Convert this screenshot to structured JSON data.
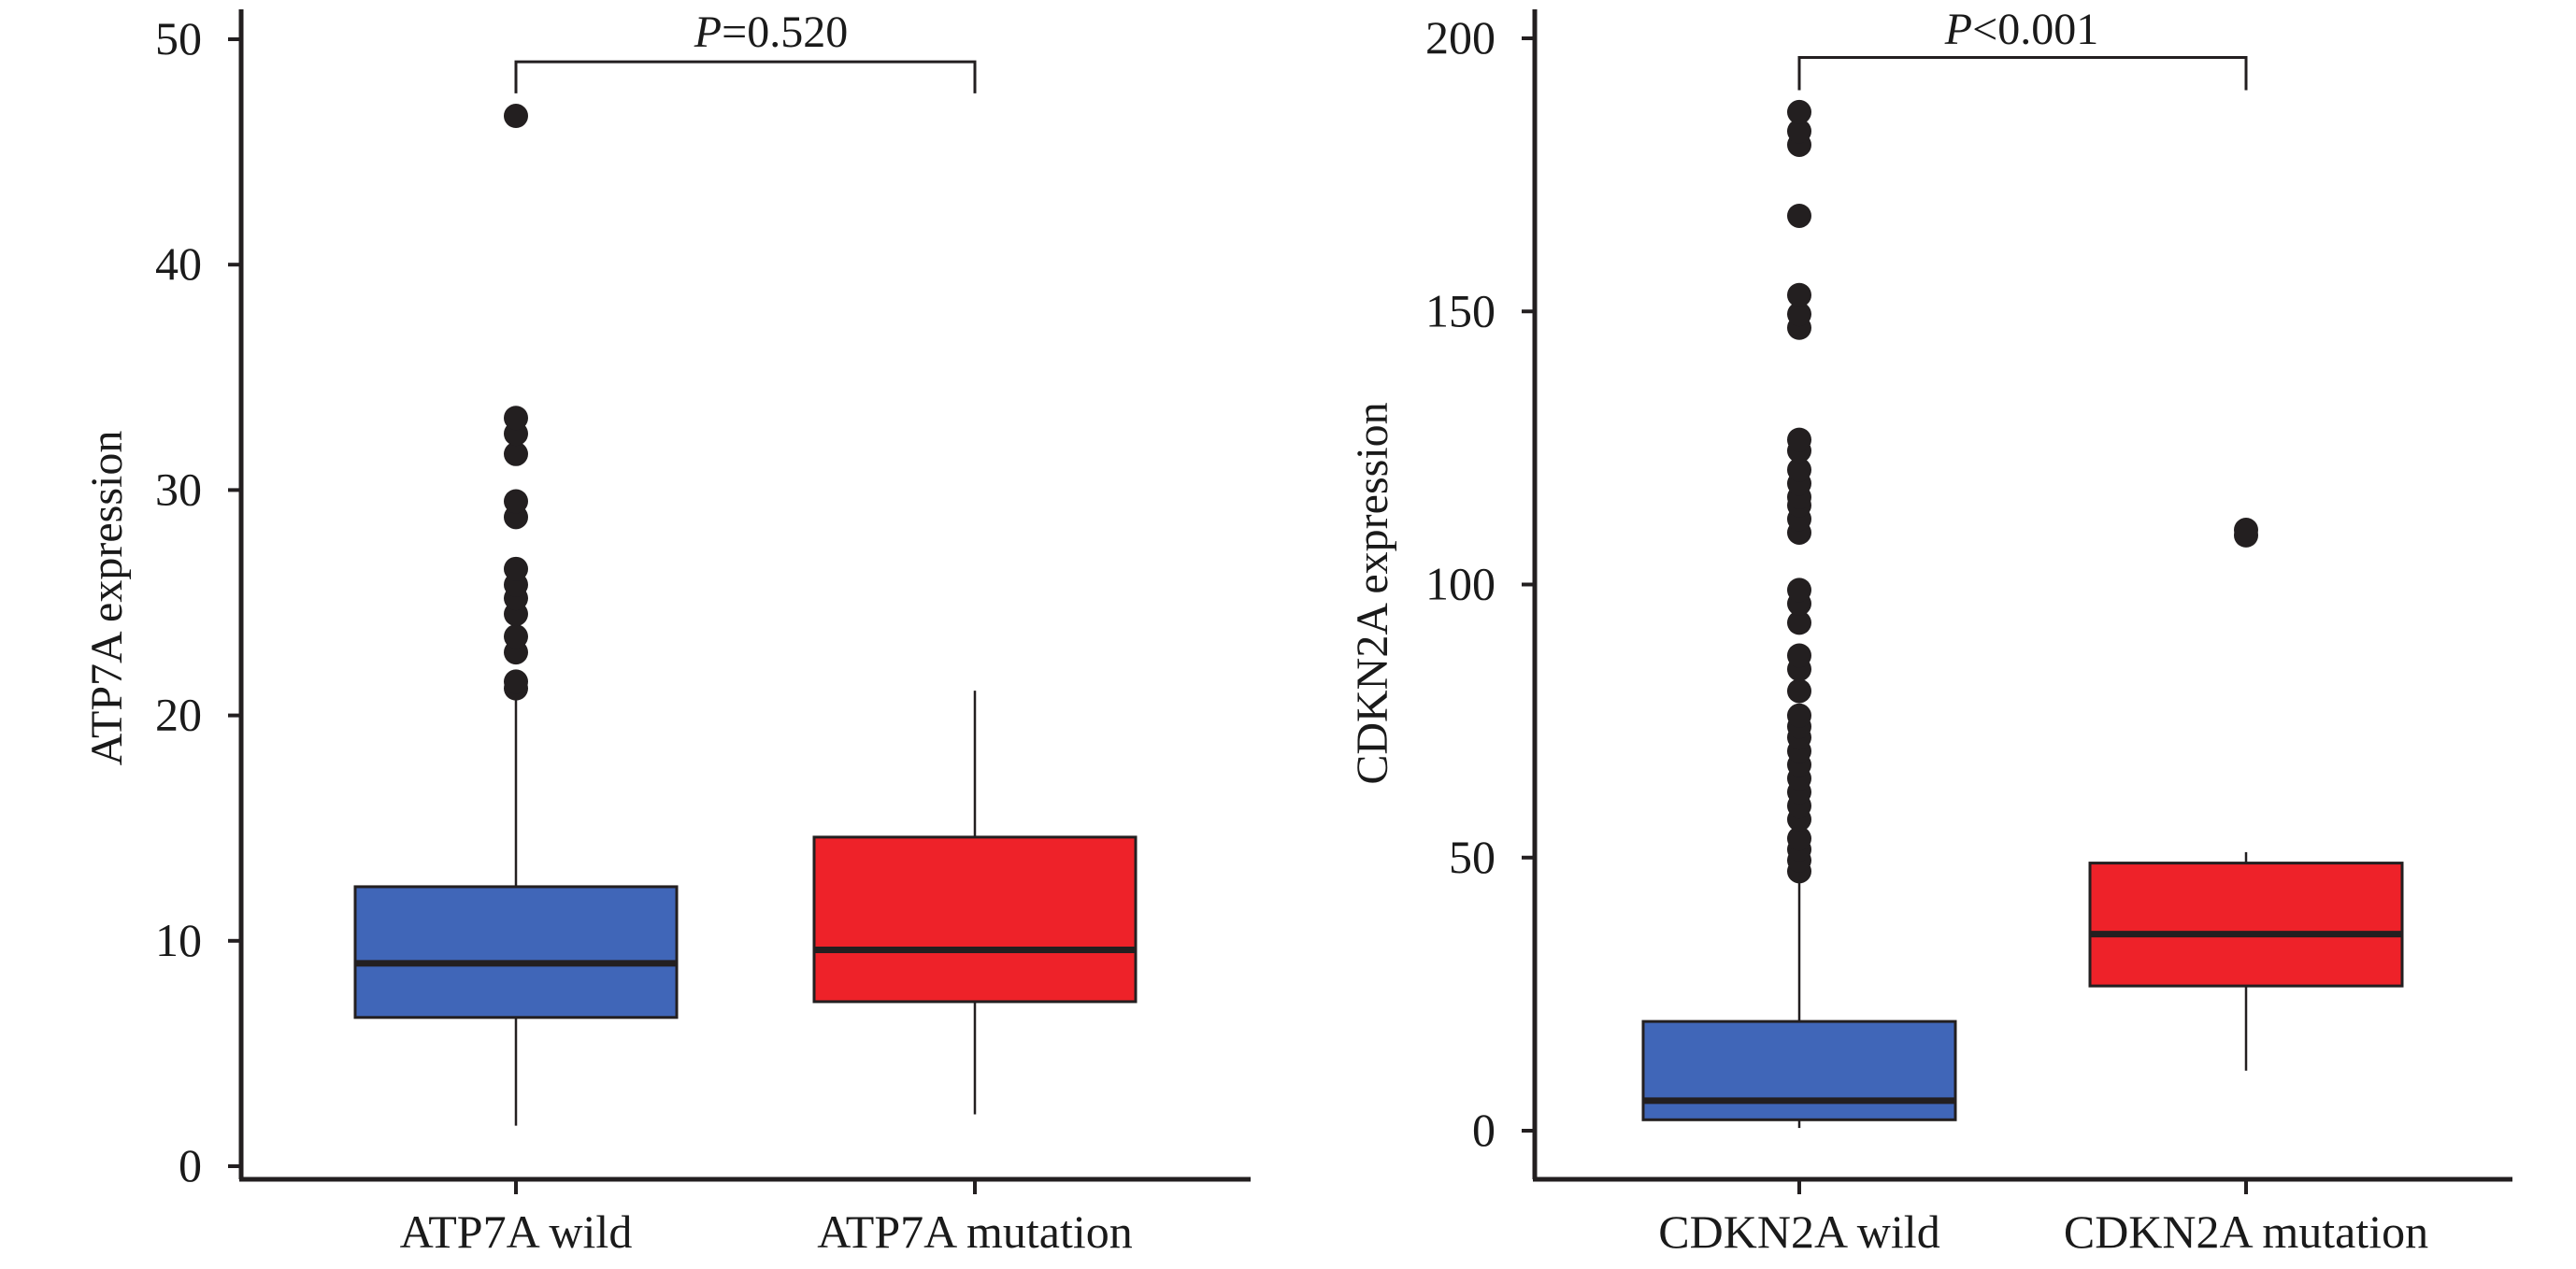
{
  "colors": {
    "wild_box": "#4066b8",
    "mutation_box": "#ee2229",
    "ink": "#231f20"
  },
  "chart_data": [
    {
      "type": "box",
      "ylabel": "ATP7A expression",
      "ylim": [
        0,
        50
      ],
      "yticks": [
        "0",
        "10",
        "20",
        "30",
        "40",
        "50"
      ],
      "categories": [
        "ATP7A wild",
        "ATP7A mutation"
      ],
      "boxes": [
        {
          "category": "ATP7A wild",
          "whisker_low": 1.8,
          "q1": 6.6,
          "median": 9.0,
          "q3": 12.4,
          "whisker_high": 21.0,
          "outliers": [
            21.2,
            21.5,
            22.8,
            23.5,
            24.5,
            25.2,
            25.8,
            26.5,
            28.8,
            29.5,
            31.6,
            32.5,
            33.2,
            46.6
          ],
          "color": "#4066b8"
        },
        {
          "category": "ATP7A mutation",
          "whisker_low": 2.3,
          "q1": 7.3,
          "median": 9.6,
          "q3": 14.6,
          "whisker_high": 21.1,
          "outliers": [],
          "color": "#ee2229"
        }
      ],
      "annotation": {
        "prefix": "P",
        "text": "=0.520",
        "bracket_y": 49.0,
        "bracket_drop_y": 47.6
      },
      "grid": false,
      "legend": "none"
    },
    {
      "type": "box",
      "ylabel": "CDKN2A expression",
      "ylim": [
        0,
        200
      ],
      "yticks": [
        "0",
        "50",
        "100",
        "150",
        "200"
      ],
      "categories": [
        "CDKN2A wild",
        "CDKN2A mutation"
      ],
      "boxes": [
        {
          "category": "CDKN2A wild",
          "whisker_low": 0.5,
          "q1": 2,
          "median": 5.5,
          "q3": 20,
          "whisker_high": 46,
          "outliers": [
            47.5,
            49.5,
            51.5,
            53.5,
            57,
            59.5,
            62,
            64.5,
            67,
            69.5,
            72,
            74,
            76,
            80.5,
            84.5,
            87,
            93,
            96.5,
            99,
            109.5,
            112,
            114.5,
            116,
            118.5,
            121,
            124.5,
            126.5,
            147,
            149.5,
            153,
            167.5,
            180.5,
            183,
            186.5
          ],
          "color": "#4066b8"
        },
        {
          "category": "CDKN2A mutation",
          "whisker_low": 11,
          "q1": 26.5,
          "median": 36,
          "q3": 49,
          "whisker_high": 51,
          "outliers": [
            109,
            110
          ],
          "color": "#ee2229"
        }
      ],
      "annotation": {
        "prefix": "P",
        "text": "<0.001",
        "bracket_y": 196.5,
        "bracket_drop_y": 190.5
      },
      "grid": false,
      "legend": "none"
    }
  ]
}
